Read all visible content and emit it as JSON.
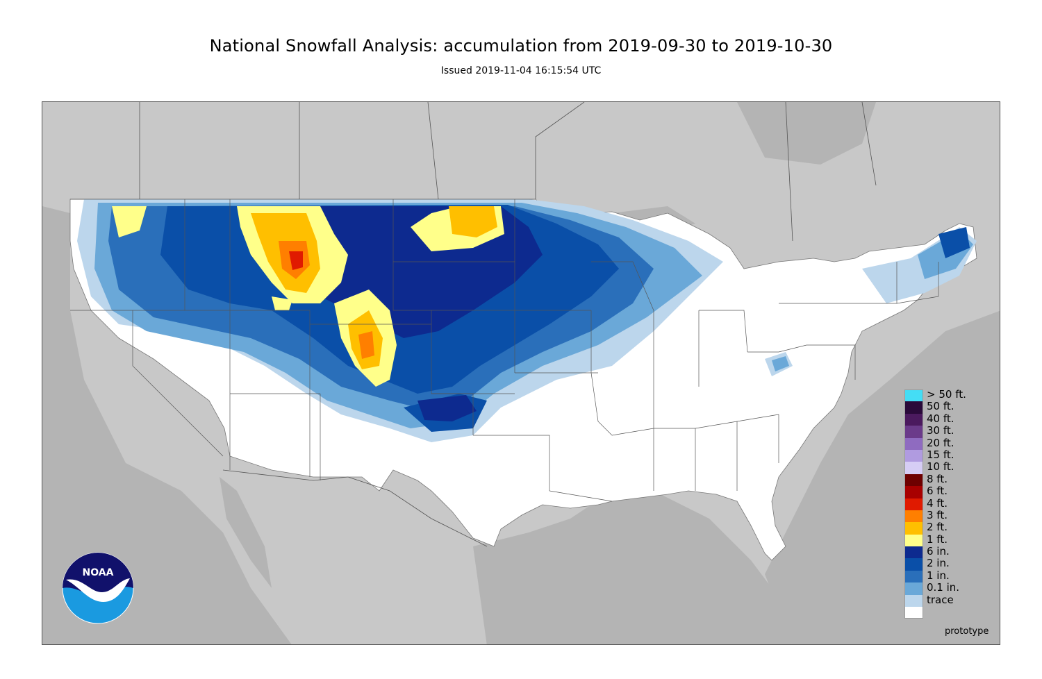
{
  "header": {
    "title": "National Snowfall Analysis: accumulation from 2019-09-30 to 2019-10-30",
    "subtitle": "Issued 2019-11-04 16:15:54 UTC"
  },
  "legend": {
    "items": [
      {
        "label": "> 50 ft.",
        "color": "#44ddf5"
      },
      {
        "label": "50 ft.",
        "color": "#2a0a3a"
      },
      {
        "label": "40 ft.",
        "color": "#4b1a5e"
      },
      {
        "label": "30 ft.",
        "color": "#6b3b8a"
      },
      {
        "label": "20 ft.",
        "color": "#8f6bc0"
      },
      {
        "label": "15 ft.",
        "color": "#b09be0"
      },
      {
        "label": "10 ft.",
        "color": "#d6cdf5"
      },
      {
        "label": "8 ft.",
        "color": "#6e0000"
      },
      {
        "label": "6 ft.",
        "color": "#a80000"
      },
      {
        "label": "4 ft.",
        "color": "#e01a00"
      },
      {
        "label": "3 ft.",
        "color": "#ff7f00"
      },
      {
        "label": "2 ft.",
        "color": "#ffbf00"
      },
      {
        "label": "1 ft.",
        "color": "#ffff8a"
      },
      {
        "label": "6 in.",
        "color": "#0d2a8f"
      },
      {
        "label": "2 in.",
        "color": "#0a4fa8"
      },
      {
        "label": "1 in.",
        "color": "#2a6fba"
      },
      {
        "label": "0.1 in.",
        "color": "#6aa8d8"
      },
      {
        "label": "trace",
        "color": "#bcd6ec"
      },
      {
        "label": "",
        "color": "#ffffff"
      }
    ]
  },
  "logo": {
    "text": "NOAA",
    "name": "noaa-logo"
  },
  "footer": {
    "prototype_label": "prototype"
  },
  "colors": {
    "background_land_outside": "#c8c8c8",
    "conus_land": "#ffffff",
    "trace": "#bcd6ec",
    "light_blue": "#6aa8d8",
    "medium_blue": "#2a6fba",
    "dark_blue": "#0a4fa8",
    "navy": "#0d2a8f",
    "one_ft": "#ffff8a",
    "two_ft": "#ffbf00",
    "three_ft": "#ff7f00",
    "four_ft": "#e01a00"
  }
}
